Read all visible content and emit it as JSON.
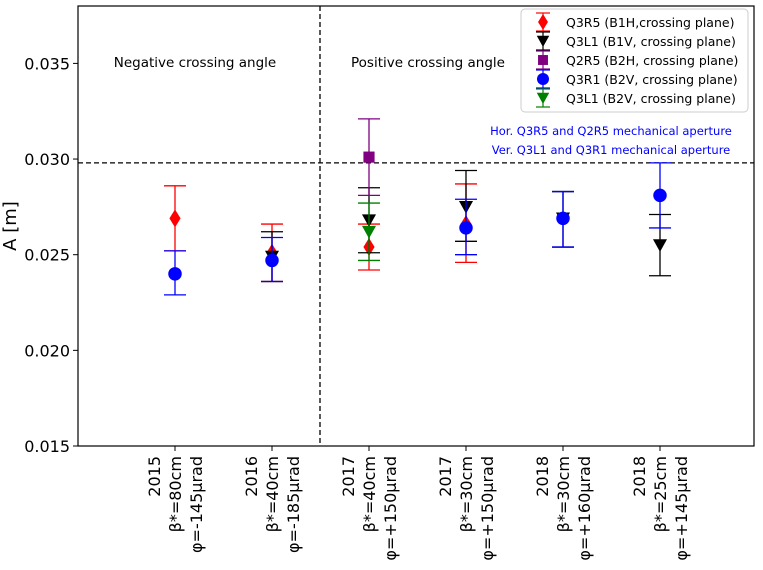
{
  "chart_data": {
    "type": "scatter",
    "title": "",
    "xlabel": "",
    "ylabel": "A [m]",
    "ylim": [
      0.015,
      0.038
    ],
    "yticks": [
      "0.015",
      "0.020",
      "0.025",
      "0.030",
      "0.035"
    ],
    "yticks_values": [
      0.015,
      0.02,
      0.025,
      0.03,
      0.035
    ],
    "categories": [
      {
        "year": "2015",
        "beta": "β*=80cm",
        "phi": "φ=-145μrad"
      },
      {
        "year": "2016",
        "beta": "β*=40cm",
        "phi": "φ=-185μrad"
      },
      {
        "year": "2017",
        "beta": "β*=40cm",
        "phi": "φ=+150μrad"
      },
      {
        "year": "2017",
        "beta": "β*=30cm",
        "phi": "φ=+150μrad"
      },
      {
        "year": "2018",
        "beta": "β*=30cm",
        "phi": "φ=+160μrad"
      },
      {
        "year": "2018",
        "beta": "β*=25cm",
        "phi": "φ=+145μrad"
      }
    ],
    "series": [
      {
        "name": "Q3R5 (B1H,crossing plane)",
        "color": "#ff0000",
        "marker": "diamond",
        "points": [
          {
            "cat": 0,
            "y": 0.0269,
            "lo": 0.0252,
            "hi": 0.0286
          },
          {
            "cat": 1,
            "y": 0.0251,
            "lo": 0.0236,
            "hi": 0.0266
          },
          {
            "cat": 2,
            "y": 0.0254,
            "lo": 0.0242,
            "hi": 0.0266
          },
          {
            "cat": 3,
            "y": 0.0266,
            "lo": 0.0246,
            "hi": 0.0287
          }
        ]
      },
      {
        "name": "Q3L1 (B1V, crossing plane)",
        "color": "#000000",
        "marker": "triangle-down",
        "points": [
          {
            "cat": 1,
            "y": 0.0249,
            "lo": 0.0236,
            "hi": 0.0262
          },
          {
            "cat": 2,
            "y": 0.0268,
            "lo": 0.0251,
            "hi": 0.0285
          },
          {
            "cat": 3,
            "y": 0.0275,
            "lo": 0.0257,
            "hi": 0.0294
          },
          {
            "cat": 4,
            "y": 0.0269,
            "lo": 0.0254,
            "hi": 0.0283
          },
          {
            "cat": 5,
            "y": 0.0255,
            "lo": 0.0239,
            "hi": 0.0271
          }
        ]
      },
      {
        "name": "Q2R5 (B2H, crossing plane)",
        "color": "#800080",
        "marker": "square",
        "points": [
          {
            "cat": 2,
            "y": 0.0301,
            "lo": 0.0281,
            "hi": 0.0321
          }
        ]
      },
      {
        "name": "Q3R1 (B2V, crossing plane)",
        "color": "#0000ff",
        "marker": "circle",
        "points": [
          {
            "cat": 0,
            "y": 0.024,
            "lo": 0.0229,
            "hi": 0.0252
          },
          {
            "cat": 1,
            "y": 0.0247,
            "lo": 0.0236,
            "hi": 0.0259
          },
          {
            "cat": 3,
            "y": 0.0264,
            "lo": 0.025,
            "hi": 0.0279
          },
          {
            "cat": 4,
            "y": 0.0269,
            "lo": 0.0254,
            "hi": 0.0283
          },
          {
            "cat": 5,
            "y": 0.0281,
            "lo": 0.0264,
            "hi": 0.0298
          }
        ]
      },
      {
        "name": "Q3L1 (B2V, crossing plane)",
        "color": "#008000",
        "marker": "triangle-down",
        "points": [
          {
            "cat": 2,
            "y": 0.0262,
            "lo": 0.0247,
            "hi": 0.0277
          }
        ]
      }
    ],
    "reference_line": {
      "y": 0.0298,
      "label_1": "Hor. Q3R5 and Q2R5 mechanical aperture",
      "label_2": "Ver. Q3L1 and Q3R1 mechanical aperture",
      "color": "#0000ff"
    },
    "region_labels": {
      "left": "Negative crossing angle",
      "right": "Positive crossing angle"
    },
    "legend_position": "top-right"
  }
}
